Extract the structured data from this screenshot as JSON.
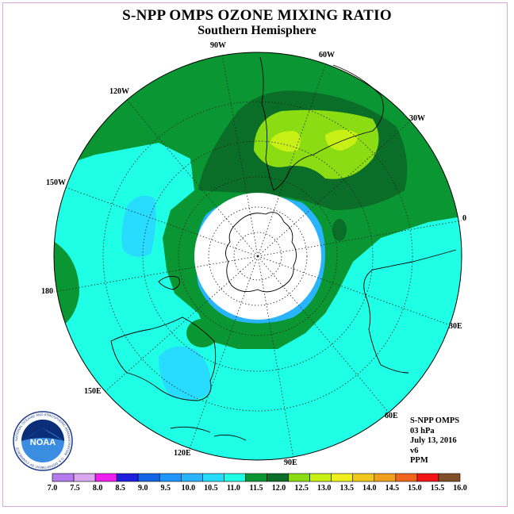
{
  "header": {
    "title": "S-NPP OMPS OZONE MIXING RATIO",
    "subtitle": "Southern Hemisphere"
  },
  "map": {
    "projection": "south polar stereographic",
    "longitude_labels": [
      "90W",
      "60W",
      "30W",
      "0",
      "30E",
      "60E",
      "90E",
      "120E",
      "150E",
      "180",
      "150W",
      "120W"
    ]
  },
  "info": {
    "lines": [
      "S-NPP OMPS",
      "03 hPa",
      "July 13, 2016",
      "v6",
      "PPM"
    ]
  },
  "colorbar": {
    "labels": [
      "7.0",
      "7.5",
      "8.0",
      "8.5",
      "9.0",
      "9.5",
      "10.0",
      "10.5",
      "11.0",
      "11.5",
      "12.0",
      "12.5",
      "13.0",
      "13.5",
      "14.0",
      "14.5",
      "15.0",
      "15.5",
      "16.0"
    ],
    "colors": [
      "#b57aee",
      "#d9a8f0",
      "#f01ef0",
      "#1e1edc",
      "#1464e6",
      "#1e96ff",
      "#28b4ff",
      "#28dcff",
      "#1effe6",
      "#0a9632",
      "#0a6e28",
      "#8cdc14",
      "#c8f014",
      "#f0f01e",
      "#f0c81e",
      "#f0a01e",
      "#f0641e",
      "#f01414",
      "#825028"
    ]
  },
  "logo": {
    "text": "NOAA",
    "ring_text": "NATIONAL OCEANIC AND ATMOSPHERIC ADMINISTRATION · U.S. DEPARTMENT OF COMMERCE"
  }
}
